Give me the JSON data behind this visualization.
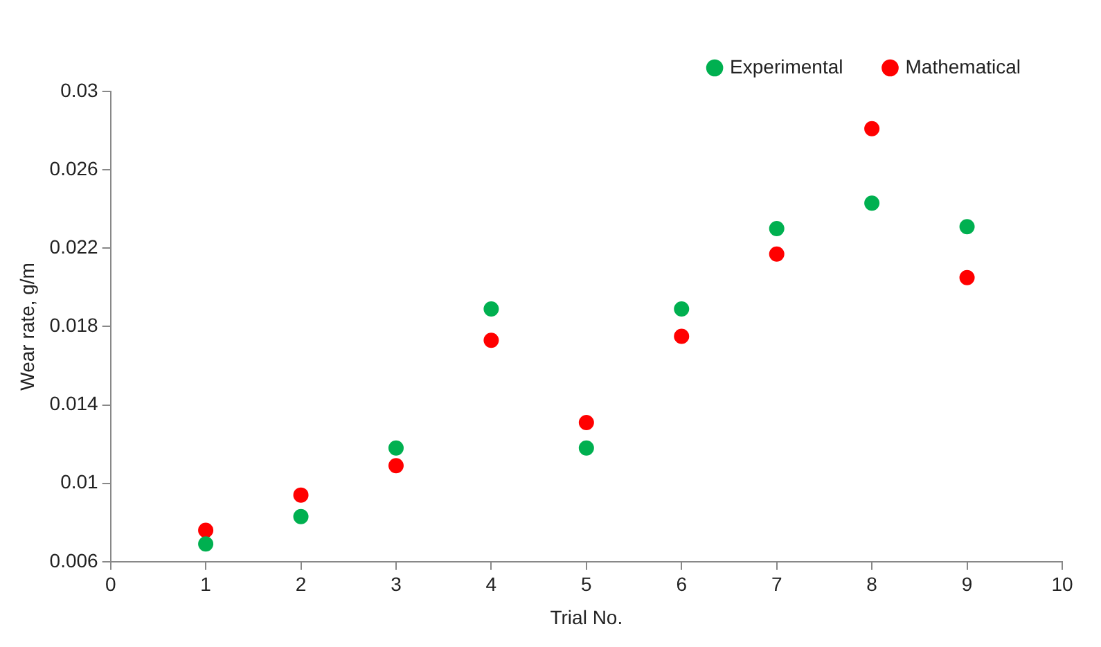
{
  "chart_data": {
    "type": "scatter",
    "xlabel": "Trial No.",
    "ylabel": "Wear rate, g/m",
    "x": [
      1,
      2,
      3,
      4,
      5,
      6,
      7,
      8,
      9
    ],
    "series": [
      {
        "name": "Experimental",
        "color": "#00b050",
        "values": [
          0.0069,
          0.0083,
          0.0118,
          0.0189,
          0.0118,
          0.0189,
          0.023,
          0.0243,
          0.0231
        ]
      },
      {
        "name": "Mathematical",
        "color": "#ff0000",
        "values": [
          0.0076,
          0.0094,
          0.0109,
          0.0173,
          0.0131,
          0.0175,
          0.0217,
          0.0281,
          0.0205
        ]
      }
    ],
    "xlim": [
      0,
      10
    ],
    "xticks": [
      0,
      1,
      2,
      3,
      4,
      5,
      6,
      7,
      8,
      9,
      10
    ],
    "ylim": [
      0.006,
      0.03
    ],
    "yticks": [
      0.006,
      0.01,
      0.014,
      0.018,
      0.022,
      0.026,
      0.03
    ],
    "grid": false,
    "legend": "top right",
    "marker": "circle"
  }
}
